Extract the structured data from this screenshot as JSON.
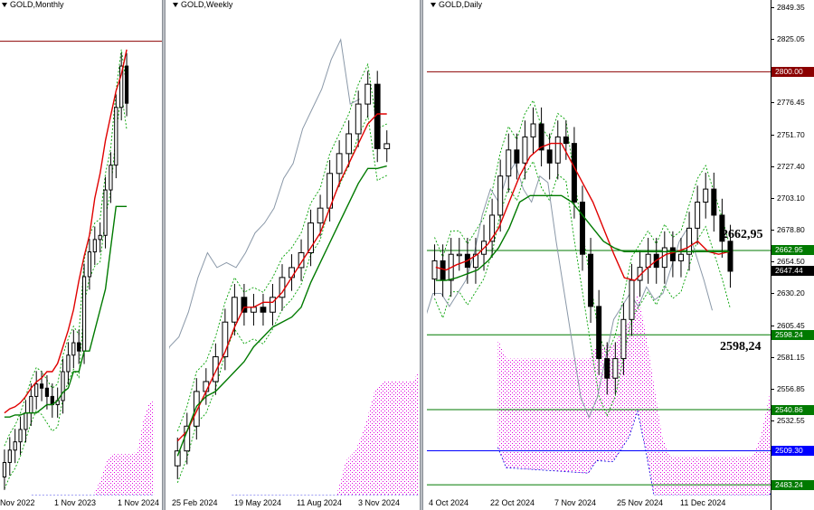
{
  "chart_data": [
    {
      "type": "candlestick",
      "symbol": "GOLD",
      "timeframe": "Monthly",
      "title": "GOLD,Monthly",
      "x_tick_labels": [
        "Nov 2022",
        "1 Nov 2023",
        "1 Nov 2024"
      ],
      "series": [
        {
          "name": "",
          "color": "#e00000",
          "values": [
            1900,
            1910,
            1915,
            1925,
            1940,
            1960,
            1975,
            1985,
            2000,
            2000,
            2020,
            2060,
            2100,
            2150,
            2220,
            2280,
            2330,
            2420,
            2480,
            2560,
            2620,
            2680,
            2720,
            2780
          ]
        },
        {
          "name": "",
          "color": "#007a00",
          "values": [
            1890,
            1890,
            1895,
            1895,
            1900,
            1900,
            1900,
            1910,
            1920,
            1920,
            1930,
            1950,
            1960,
            2000,
            2000,
            2050,
            2050,
            2100,
            2150,
            2200,
            2300,
            2400,
            2400,
            2400
          ]
        }
      ],
      "candles_close": [
        1780,
        1810,
        1830,
        1860,
        1900,
        1940,
        1970,
        1960,
        1940,
        1920,
        1930,
        2000,
        2040,
        2070,
        2050,
        2230,
        2290,
        2320,
        2330,
        2440,
        2500,
        2640,
        2740,
        2650
      ],
      "ylim": [
        1700,
        2900
      ]
    },
    {
      "type": "candlestick",
      "symbol": "GOLD",
      "timeframe": "Weekly",
      "title": "GOLD,Weekly",
      "x_tick_labels": [
        "25 Feb 2024",
        "19 May 2024",
        "11 Aug 2024",
        "3 Nov 2024"
      ],
      "series": [
        {
          "name": "",
          "color": "#e00000",
          "values": [
            2060,
            2080,
            2120,
            2160,
            2200,
            2240,
            2290,
            2330,
            2330,
            2340,
            2340,
            2360,
            2390,
            2420,
            2450,
            2480,
            2530,
            2580,
            2620,
            2660,
            2700,
            2720,
            2720
          ]
        },
        {
          "name": "",
          "color": "#007a00",
          "values": [
            2030,
            2080,
            2130,
            2150,
            2160,
            2180,
            2200,
            2220,
            2250,
            2270,
            2290,
            2300,
            2310,
            2330,
            2380,
            2420,
            2460,
            2500,
            2540,
            2580,
            2610,
            2610,
            2615
          ]
        }
      ],
      "candles_close": [
        2040,
        2090,
        2160,
        2180,
        2230,
        2300,
        2350,
        2320,
        2330,
        2320,
        2350,
        2390,
        2410,
        2440,
        2500,
        2530,
        2600,
        2640,
        2680,
        2740,
        2780,
        2650,
        2660
      ],
      "ylim": [
        1950,
        2950
      ]
    },
    {
      "type": "candlestick",
      "symbol": "GOLD",
      "timeframe": "Daily",
      "title": "GOLD,Daily",
      "x_tick_labels": [
        "4 Oct 2024",
        "22 Oct 2024",
        "7 Nov 2024",
        "25 Nov 2024",
        "11 Dec 2024"
      ],
      "y_tick_labels": [
        "2849.35",
        "2825.05",
        "2800.00",
        "2776.45",
        "2751.70",
        "2727.40",
        "2703.10",
        "2678.80",
        "2662.95",
        "2654.50",
        "2647.44",
        "2630.20",
        "2605.45",
        "2598.24",
        "2581.15",
        "2556.85",
        "2540.86",
        "2532.55",
        "2509.30",
        "2483.24"
      ],
      "levels": [
        {
          "value": 2800.0,
          "label": "2800.00",
          "color": "#8b0000"
        },
        {
          "value": 2662.95,
          "label": "2662,95",
          "color": "#007a00"
        },
        {
          "value": 2598.24,
          "label": "2598,24",
          "color": "#007a00"
        },
        {
          "value": 2540.86,
          "label": "2540.86",
          "color": "#007a00"
        },
        {
          "value": 2509.3,
          "label": "2509.30",
          "color": "#0000ff"
        },
        {
          "value": 2483.24,
          "label": "2483.24",
          "color": "#007a00"
        }
      ],
      "last_price": 2647.44,
      "series": [
        {
          "name": "",
          "color": "#e00000",
          "values": [
            2650,
            2648,
            2652,
            2655,
            2660,
            2668,
            2680,
            2700,
            2720,
            2735,
            2742,
            2745,
            2745,
            2730,
            2715,
            2700,
            2680,
            2660,
            2642,
            2640,
            2648,
            2655,
            2660,
            2662,
            2665,
            2670,
            2662,
            2660,
            2662
          ]
        },
        {
          "name": "",
          "color": "#007a00",
          "values": [
            2640,
            2640,
            2642,
            2645,
            2648,
            2655,
            2665,
            2680,
            2700,
            2705,
            2705,
            2705,
            2705,
            2700,
            2690,
            2680,
            2670,
            2665,
            2662,
            2662,
            2662,
            2662,
            2662,
            2662,
            2662,
            2662,
            2662,
            2662,
            2662
          ]
        }
      ],
      "candles_close": [
        2655,
        2640,
        2660,
        2660,
        2650,
        2660,
        2670,
        2690,
        2720,
        2740,
        2730,
        2750,
        2760,
        2740,
        2730,
        2750,
        2745,
        2700,
        2660,
        2620,
        2580,
        2565,
        2580,
        2610,
        2640,
        2650,
        2660,
        2650,
        2665,
        2655,
        2660,
        2680,
        2700,
        2710,
        2690,
        2670,
        2647
      ],
      "ylim": [
        2475,
        2855
      ]
    }
  ],
  "annotations": {
    "upper": "2662,95",
    "lower": "2598,24"
  }
}
